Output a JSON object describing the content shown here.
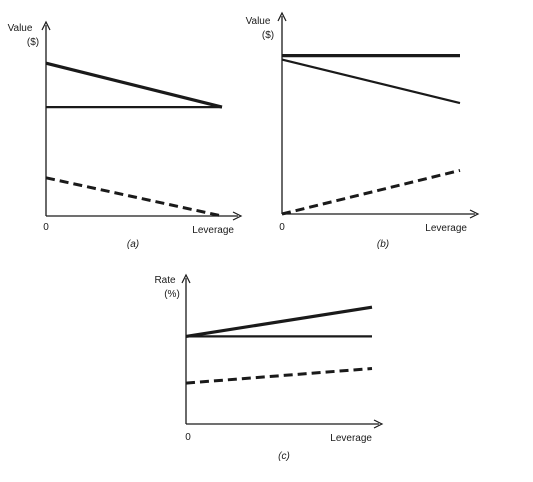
{
  "chart_data": [
    {
      "type": "line",
      "caption": "(a)",
      "ylabel_line1": "Value",
      "ylabel_line2": "($)",
      "xlabel": "Leverage",
      "origin_label": "0",
      "xlim": [
        0,
        10
      ],
      "ylim": [
        0,
        10
      ],
      "series": [
        {
          "style": "solid-thick",
          "x": [
            0,
            10
          ],
          "y": [
            8.0,
            5.7
          ]
        },
        {
          "style": "solid",
          "x": [
            0,
            10
          ],
          "y": [
            5.7,
            5.7
          ]
        },
        {
          "style": "dashed",
          "x": [
            0,
            10
          ],
          "y": [
            2.0,
            0.0
          ]
        }
      ]
    },
    {
      "type": "line",
      "caption": "(b)",
      "ylabel_line1": "Value",
      "ylabel_line2": "($)",
      "xlabel": "Leverage",
      "origin_label": "0",
      "xlim": [
        0,
        10
      ],
      "ylim": [
        0,
        10
      ],
      "series": [
        {
          "style": "solid-thick",
          "x": [
            0,
            10
          ],
          "y": [
            8.0,
            8.0
          ]
        },
        {
          "style": "solid",
          "x": [
            0,
            10
          ],
          "y": [
            7.8,
            5.6
          ]
        },
        {
          "style": "dashed",
          "x": [
            0,
            10
          ],
          "y": [
            0.0,
            2.2
          ]
        }
      ]
    },
    {
      "type": "line",
      "caption": "(c)",
      "ylabel_line1": "Rate",
      "ylabel_line2": "(%)",
      "xlabel": "Leverage",
      "origin_label": "0",
      "xlim": [
        0,
        10
      ],
      "ylim": [
        0,
        10
      ],
      "series": [
        {
          "style": "solid-thick",
          "x": [
            0,
            10
          ],
          "y": [
            6.0,
            8.0
          ]
        },
        {
          "style": "solid",
          "x": [
            0,
            10
          ],
          "y": [
            6.0,
            6.0
          ]
        },
        {
          "style": "dashed",
          "x": [
            0,
            10
          ],
          "y": [
            2.8,
            3.8
          ]
        }
      ]
    }
  ]
}
